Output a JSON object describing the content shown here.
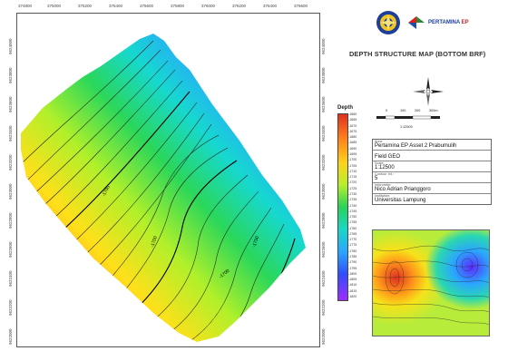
{
  "map": {
    "x_ticks": [
      "374800",
      "375000",
      "375200",
      "375400",
      "375600",
      "375800",
      "376000",
      "376200",
      "376400",
      "376600"
    ],
    "y_ticks_left": [
      "9624000",
      "9623800",
      "9623600",
      "9623400",
      "9623200",
      "9623000",
      "9622800",
      "9622600",
      "9622400",
      "9622200",
      "9622000"
    ],
    "y_ticks_right": [
      "9624000",
      "9623800",
      "9623600",
      "9623400",
      "9623200",
      "9623000",
      "9622800",
      "9622600",
      "9622400",
      "9622200",
      "9622000"
    ],
    "contour_labels": [
      "-1700",
      "-1700",
      "-1700",
      "-1750"
    ]
  },
  "logos": {
    "pertamina_text": "PERTAMINA",
    "pertamina_suffix": "EP"
  },
  "title": "DEPTH STRUCTURE MAP (BOTTOM BRF)",
  "legend": {
    "title": "Depth",
    "labels": [
      "-1660",
      "-1665",
      "-1670",
      "-1675",
      "-1680",
      "-1685",
      "-1690",
      "-1695",
      "-1700",
      "-1705",
      "-1710",
      "-1715",
      "-1720",
      "-1725",
      "-1730",
      "-1735",
      "-1740",
      "-1745",
      "-1750",
      "-1755",
      "-1760",
      "-1765",
      "-1770",
      "-1775",
      "-1780",
      "-1785",
      "-1790",
      "-1795",
      "-1800",
      "-1805",
      "-1810",
      "-1815",
      "-1820"
    ]
  },
  "scale": {
    "ticks": [
      "0",
      "100",
      "200",
      "300m"
    ],
    "ratio": "1:12500"
  },
  "info": [
    {
      "label": "Area:",
      "value": "Pertamina EP Asset 2 Prabumulih"
    },
    {
      "label": "",
      "value": "Field GEO"
    },
    {
      "label": "Scale:",
      "value": "1:12500"
    },
    {
      "label": "Contour Int.:",
      "value": "5"
    },
    {
      "label": "Interpreter:",
      "value": "Nico Adrian Prianggoro"
    },
    {
      "label": "Institution:",
      "value": "Universitas Lampung"
    }
  ],
  "colors": {
    "deep": "#a02cff",
    "shallow": "#e03020"
  }
}
